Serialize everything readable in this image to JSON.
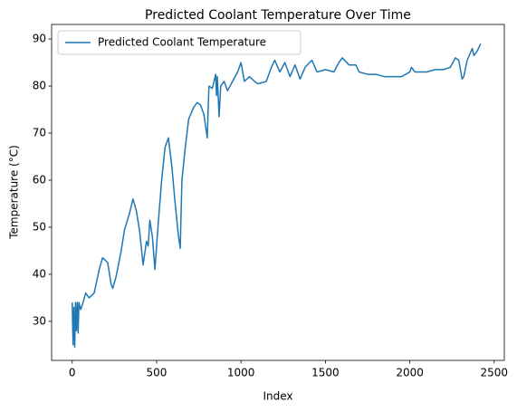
{
  "chart_data": {
    "type": "line",
    "title": "Predicted Coolant Temperature Over Time",
    "xlabel": "Index",
    "ylabel": "Temperature (°C)",
    "x": [
      0,
      5,
      10,
      15,
      20,
      25,
      30,
      35,
      40,
      50,
      60,
      80,
      100,
      130,
      160,
      180,
      210,
      230,
      240,
      260,
      290,
      310,
      340,
      360,
      380,
      400,
      420,
      440,
      450,
      460,
      475,
      490,
      510,
      530,
      550,
      570,
      590,
      610,
      630,
      640,
      650,
      670,
      690,
      720,
      740,
      760,
      780,
      800,
      810,
      830,
      840,
      850,
      855,
      860,
      870,
      880,
      900,
      920,
      950,
      980,
      1000,
      1020,
      1050,
      1080,
      1100,
      1150,
      1180,
      1200,
      1230,
      1260,
      1290,
      1320,
      1350,
      1380,
      1420,
      1450,
      1500,
      1550,
      1580,
      1600,
      1640,
      1680,
      1700,
      1750,
      1800,
      1850,
      1900,
      1950,
      2000,
      2010,
      2030,
      2100,
      2150,
      2200,
      2240,
      2270,
      2290,
      2310,
      2320,
      2340,
      2370,
      2380,
      2400,
      2420
    ],
    "series": [
      {
        "name": "Predicted Coolant Temperature",
        "color": "#1f77b4",
        "values": [
          34,
          25,
          33,
          24.5,
          34,
          28,
          34,
          27.5,
          34,
          32.5,
          33.5,
          36,
          35,
          36,
          41,
          43.5,
          42.5,
          38,
          37,
          39.5,
          45,
          49.5,
          53,
          56,
          53.5,
          49,
          42,
          47,
          46,
          51.5,
          48,
          41,
          51,
          60,
          67,
          69,
          63,
          55,
          48,
          45.5,
          60,
          67,
          73,
          75.5,
          76.5,
          76,
          74,
          69,
          80,
          79.5,
          81,
          82.5,
          78,
          82,
          73.5,
          80,
          81,
          79,
          81,
          83,
          85,
          81,
          82,
          81,
          80.5,
          81,
          84,
          85.5,
          83,
          85,
          82,
          84.5,
          81.5,
          84,
          85.5,
          83,
          83.5,
          83,
          85,
          86,
          84.5,
          84.5,
          83,
          82.5,
          82.5,
          82,
          82,
          82,
          83,
          84,
          83,
          83,
          83.5,
          83.5,
          84,
          86,
          85.5,
          81.5,
          82,
          85.5,
          88,
          86.5,
          87.5,
          89
        ]
      }
    ],
    "xlim": [
      -122,
      2560
    ],
    "ylim": [
      21.7,
      93.1
    ],
    "xticks": [
      0,
      500,
      1000,
      1500,
      2000,
      2500
    ],
    "yticks": [
      30,
      40,
      50,
      60,
      70,
      80,
      90
    ],
    "legend": "upper left",
    "grid": false
  }
}
